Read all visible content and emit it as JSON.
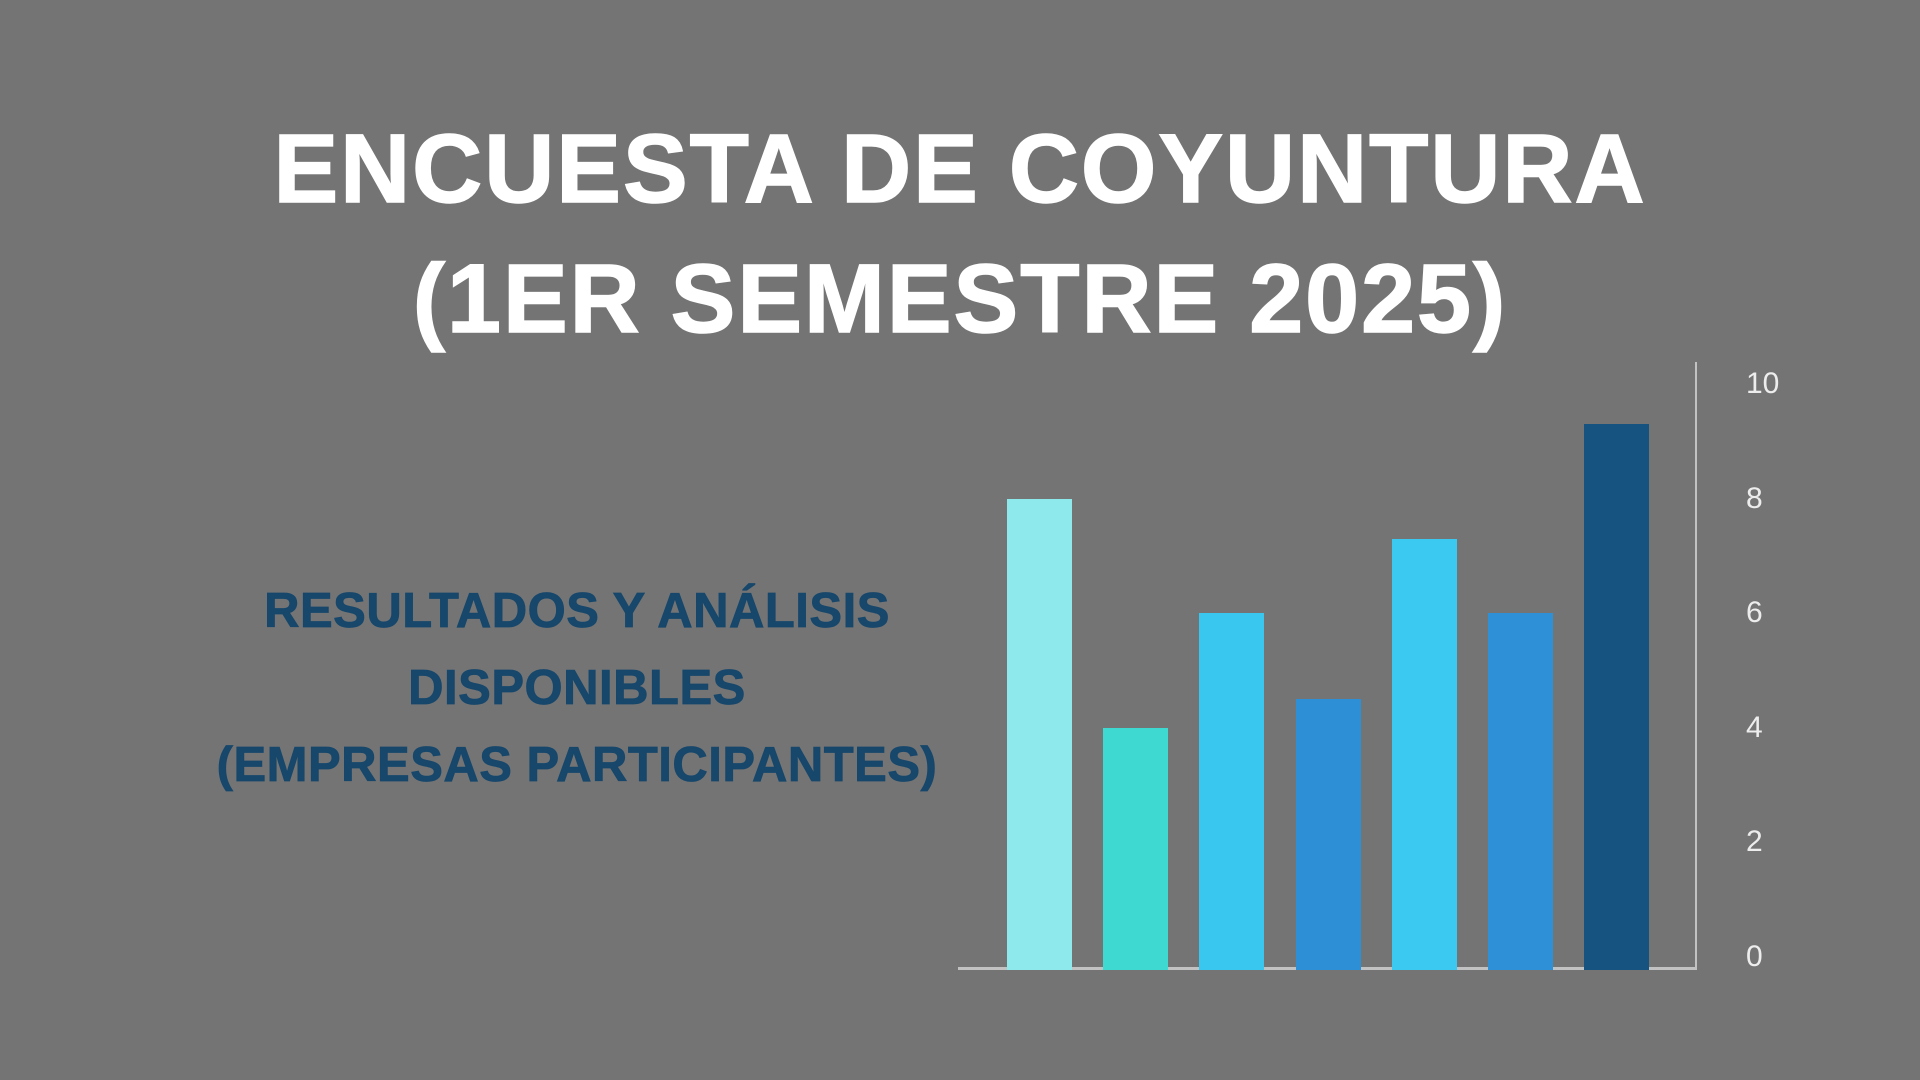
{
  "slide": {
    "background_color": "#747474",
    "title_line1": "ENCUESTA DE COYUNTURA",
    "title_line2": "(1ER SEMESTRE 2025)",
    "title_color": "#FFFFFF",
    "subtitle_lines": [
      "RESULTADOS Y ANÁLISIS",
      "DISPONIBLES",
      "(EMPRESAS PARTICIPANTES)"
    ],
    "subtitle_color": "#17476B"
  },
  "chart_data": {
    "type": "bar",
    "title": "",
    "xlabel": "",
    "ylabel": "",
    "categories": [
      "",
      "",
      "",
      "",
      "",
      "",
      ""
    ],
    "values": [
      8,
      4,
      6,
      4.5,
      7.3,
      6,
      9.3
    ],
    "bar_colors": [
      "#8DE9EB",
      "#3ED9D0",
      "#39C7F0",
      "#2D8FD5",
      "#3BC9F1",
      "#2E90D7",
      "#175380"
    ],
    "ylim": [
      0,
      10
    ],
    "yticks": [
      0,
      2,
      4,
      6,
      8,
      10
    ],
    "ytick_labels": [
      "0",
      "2",
      "4",
      "6",
      "8",
      "10"
    ],
    "ytick_side": "right",
    "grid": false,
    "legend": false,
    "axis_color": "#C2C2C2",
    "tick_label_color": "#EDEDED"
  }
}
